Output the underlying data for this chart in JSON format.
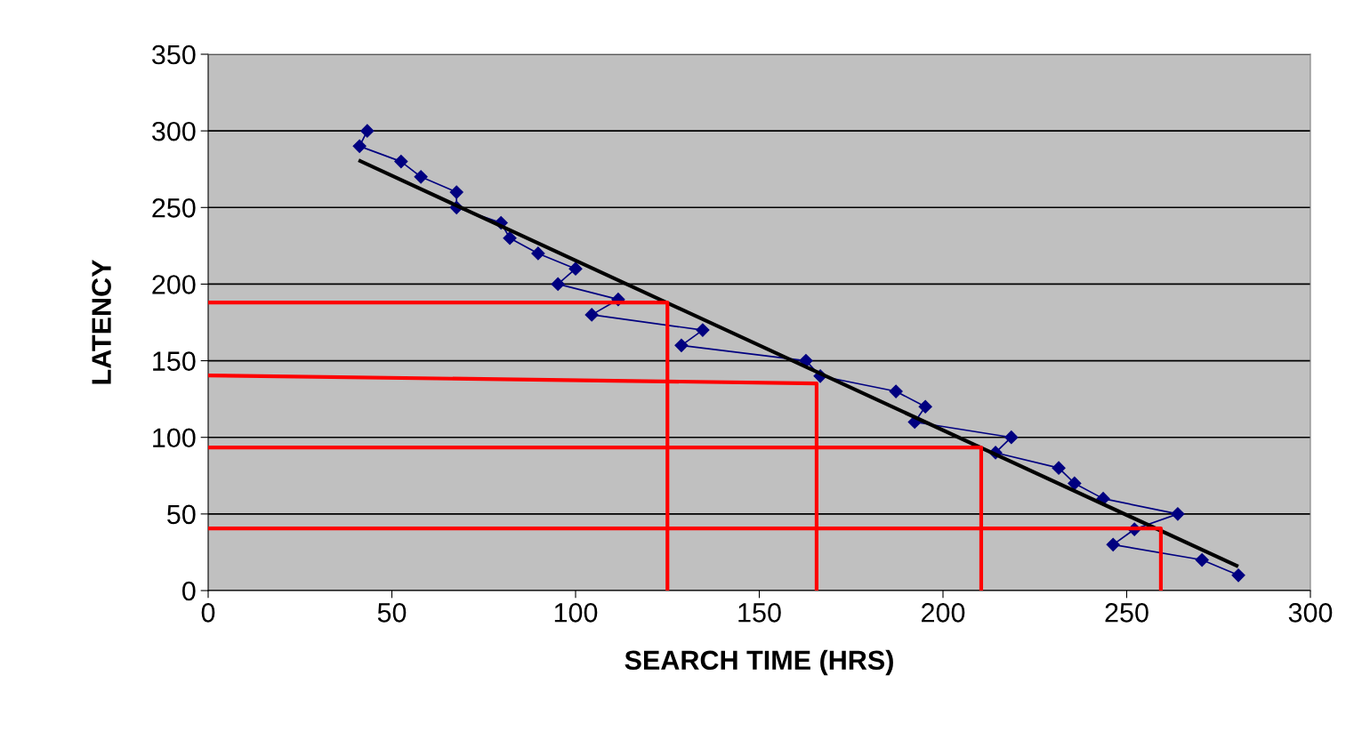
{
  "chart_data": {
    "type": "line",
    "xlabel": "SEARCH TIME (HRS)",
    "ylabel": "LATENCY",
    "xlim": [
      0,
      300
    ],
    "xticks": [
      0,
      50,
      100,
      150,
      200,
      250,
      300
    ],
    "ylim": [
      0,
      350
    ],
    "yticks": [
      0,
      50,
      100,
      150,
      200,
      250,
      300,
      350
    ],
    "grid": "y",
    "legend": false,
    "series": [
      {
        "color": "#000080",
        "marker": "diamond",
        "x": [
          43.3,
          41.2,
          52.5,
          57.9,
          67.6,
          67.6,
          79.7,
          82.1,
          89.8,
          100,
          95.2,
          111.6,
          104.4,
          134.6,
          128.8,
          162.7,
          166.6,
          187.2,
          195.2,
          192.3,
          218.6,
          214.3,
          231.5,
          235.8,
          243.6,
          263.9,
          252.1,
          246.3,
          270.5,
          280.4
        ],
        "values": [
          300,
          290,
          280,
          270,
          260,
          250,
          240,
          230,
          220,
          210,
          200,
          190,
          180,
          170,
          160,
          150,
          140,
          130,
          120,
          110,
          100,
          90,
          80,
          70,
          60,
          50,
          40,
          30,
          20,
          10
        ]
      },
      {
        "color": "#000000",
        "marker": "none",
        "x": [
          41.4,
          279.9
        ],
        "values": [
          280.3,
          16.2
        ]
      },
      {
        "color": "#ff0000",
        "marker": "none",
        "x": [
          0,
          125,
          125
        ],
        "values": [
          188,
          188,
          0
        ]
      },
      {
        "color": "#ff0000",
        "marker": "none",
        "x": [
          0,
          165.6,
          165.6
        ],
        "values": [
          140.4,
          135.2,
          0
        ]
      },
      {
        "color": "#ff0000",
        "marker": "none",
        "x": [
          0,
          210.4,
          210.4
        ],
        "values": [
          93.4,
          93.4,
          0
        ]
      },
      {
        "color": "#ff0000",
        "marker": "none",
        "x": [
          0,
          259.3,
          259.3
        ],
        "values": [
          40.6,
          40.6,
          0
        ]
      }
    ]
  }
}
